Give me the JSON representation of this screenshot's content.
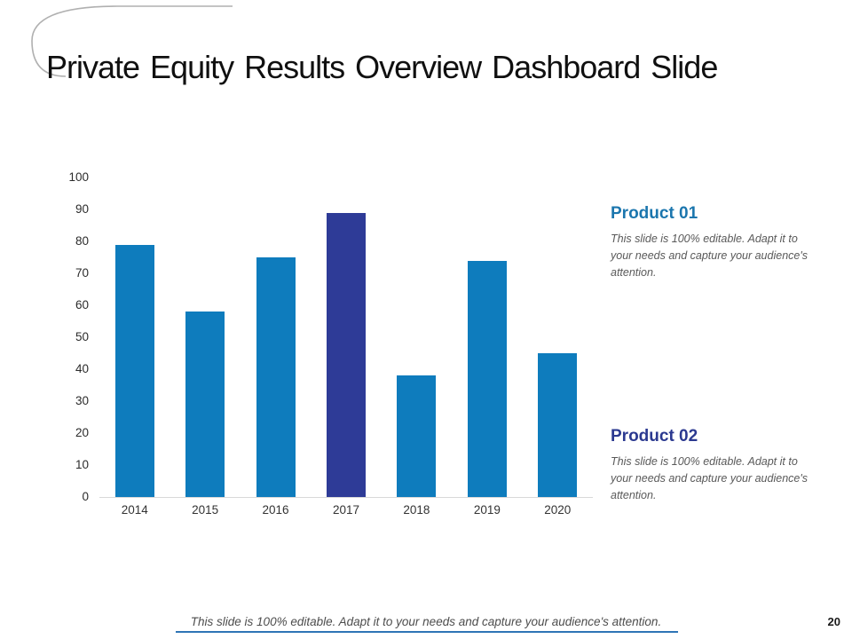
{
  "slide": {
    "title": "Private Equity Results Overview Dashboard Slide",
    "page_number": "20"
  },
  "footer": {
    "text": "This slide is 100% editable. Adapt it to your needs and capture your audience's attention."
  },
  "products": [
    {
      "name": "Product 01",
      "description": "This slide is 100% editable. Adapt it to your needs and capture your audience's attention."
    },
    {
      "name": "Product 02",
      "description": "This slide is 100% editable. Adapt it to your needs and capture your audience's attention."
    }
  ],
  "colors": {
    "bar_primary": "#0E7CBD",
    "bar_highlight": "#2E3B97",
    "product1_heading": "#1B76AE",
    "product2_heading": "#2B3990",
    "footer_rule": "#2E75B6",
    "axis_line": "#D9D9D9",
    "body_text": "#595959",
    "decor_curve": "#B0B0B0"
  },
  "chart_data": {
    "type": "bar",
    "categories": [
      "2014",
      "2015",
      "2016",
      "2017",
      "2018",
      "2019",
      "2020"
    ],
    "values": [
      79,
      58,
      75,
      89,
      38,
      74,
      45
    ],
    "highlighted_category": "2017",
    "yticks": [
      0,
      10,
      20,
      30,
      40,
      50,
      60,
      70,
      80,
      90,
      100
    ],
    "ylim": [
      0,
      100
    ],
    "title": "",
    "xlabel": "",
    "ylabel": "",
    "grid": false,
    "legend": false
  }
}
